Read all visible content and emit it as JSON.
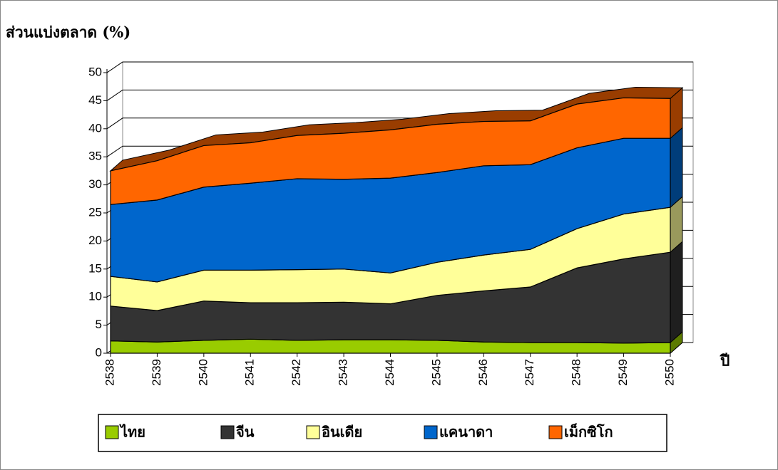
{
  "chart_data": {
    "type": "stacked_area_3d",
    "title": "ส่วนแบ่งตลาด (%)",
    "x_label": "ปี",
    "categories": [
      "2538",
      "2539",
      "2540",
      "2541",
      "2542",
      "2543",
      "2544",
      "2545",
      "2546",
      "2547",
      "2548",
      "2549",
      "2550"
    ],
    "ylim": [
      0,
      50
    ],
    "yticks": [
      0,
      5,
      10,
      15,
      20,
      25,
      30,
      35,
      40,
      45,
      50
    ],
    "grid": true,
    "legend": "bottom",
    "series": [
      {
        "name": "ไทย",
        "color": "#99cc00",
        "values": [
          2.2,
          2.0,
          2.3,
          2.5,
          2.3,
          2.4,
          2.4,
          2.3,
          2.0,
          1.9,
          1.9,
          1.8,
          1.9
        ]
      },
      {
        "name": "จีน",
        "color": "#333333",
        "values": [
          6.2,
          5.6,
          7.0,
          6.5,
          6.7,
          6.7,
          6.4,
          8.0,
          9.1,
          9.9,
          13.3,
          15.0,
          16.1
        ]
      },
      {
        "name": "อินเดีย",
        "color": "#ffff99",
        "values": [
          5.3,
          5.1,
          5.5,
          5.8,
          5.9,
          5.9,
          5.5,
          5.9,
          6.4,
          6.7,
          7.0,
          8.0,
          8.0
        ]
      },
      {
        "name": "แคนาดา",
        "color": "#0066cc",
        "values": [
          12.8,
          14.6,
          14.8,
          15.5,
          16.2,
          16.0,
          16.9,
          16.0,
          15.9,
          15.1,
          14.4,
          13.5,
          12.3
        ]
      },
      {
        "name": "เม็กซิโก",
        "color": "#ff6600",
        "values": [
          6.0,
          7.0,
          7.4,
          7.2,
          7.7,
          8.2,
          8.6,
          8.6,
          7.9,
          7.8,
          7.8,
          7.2,
          7.1
        ]
      }
    ]
  }
}
